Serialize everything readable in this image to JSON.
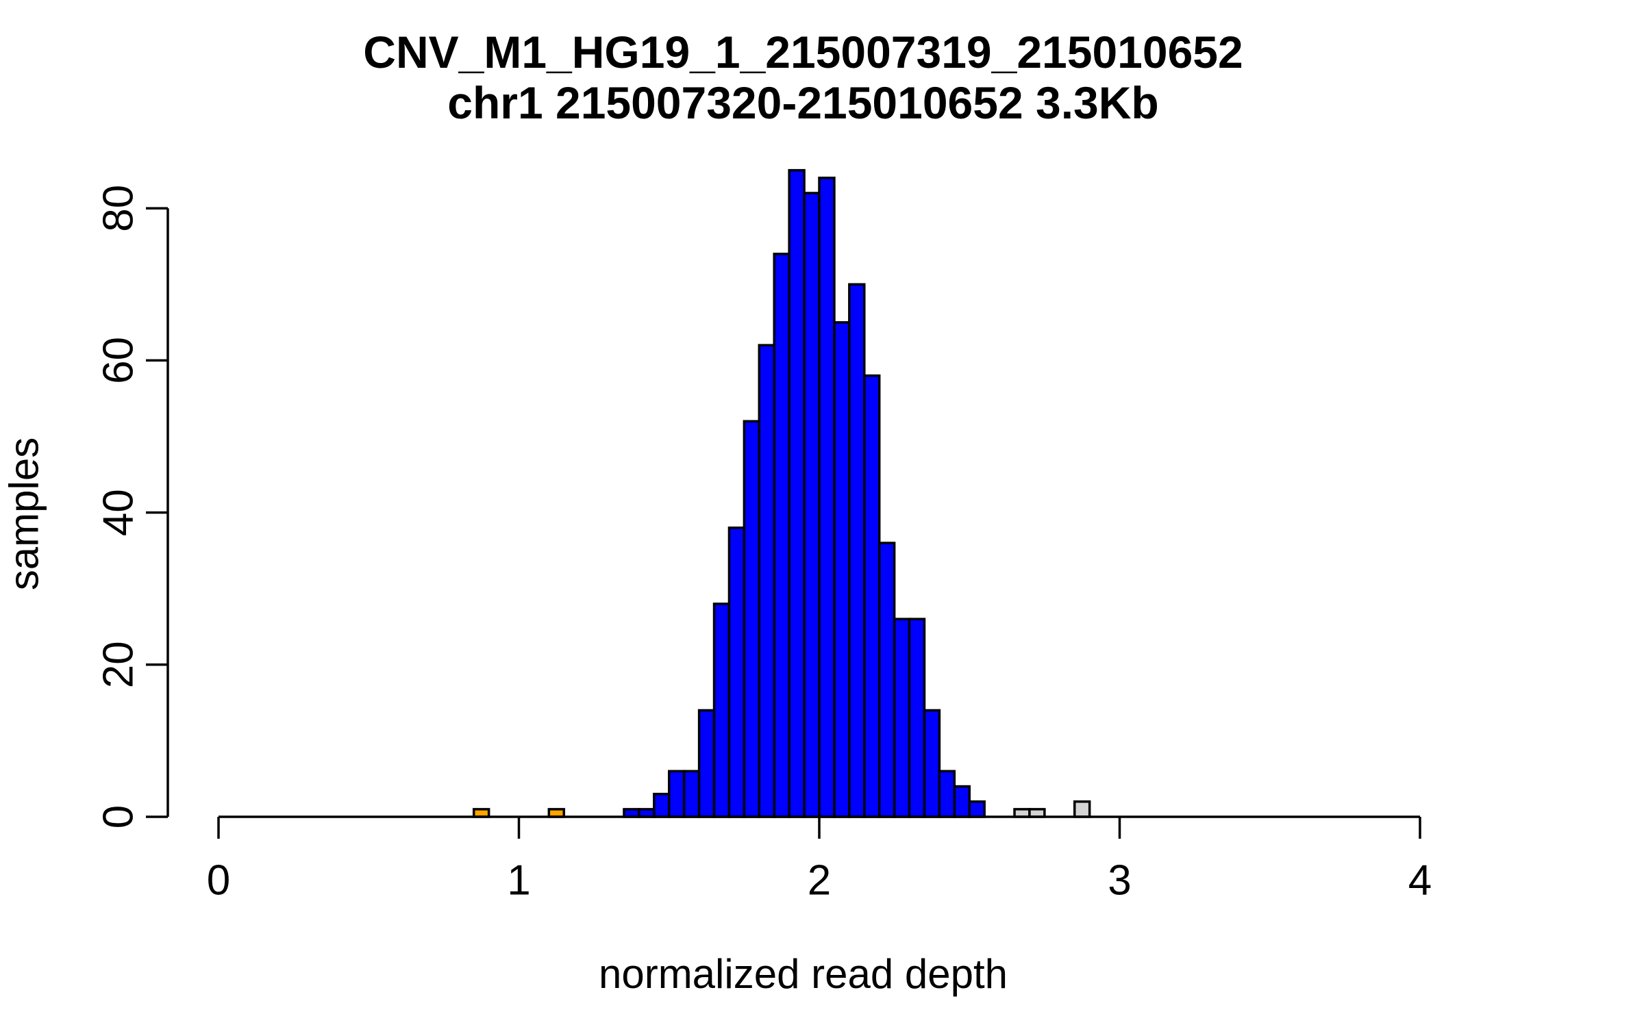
{
  "title": {
    "line1": "CNV_M1_HG19_1_215007319_215010652",
    "line2": "chr1 215007320-215010652 3.3Kb"
  },
  "axes": {
    "x_label": "normalized read depth",
    "y_label": "samples",
    "x_ticks": [
      "0",
      "1",
      "2",
      "3",
      "4"
    ],
    "x_tick_values": [
      0,
      1,
      2,
      3,
      4
    ],
    "y_ticks": [
      "0",
      "20",
      "40",
      "60",
      "80"
    ],
    "y_tick_values": [
      0,
      20,
      40,
      60,
      80
    ]
  },
  "colors": {
    "axis": "#000000",
    "bar_border": "#000000",
    "normal": "#0000ff",
    "loss": "#ffa500",
    "gain": "#d3d3d3",
    "background": "#ffffff"
  },
  "chart_data": {
    "type": "bar",
    "subtype": "histogram",
    "title": "CNV_M1_HG19_1_215007319_215010652",
    "subtitle": "chr1 215007320-215010652 3.3Kb",
    "xlabel": "normalized read depth",
    "ylabel": "samples",
    "xlim": [
      0,
      4.35
    ],
    "ylim": [
      0,
      85
    ],
    "grid": false,
    "legend": false,
    "bin_width": 0.05,
    "bins": [
      {
        "start": 0.85,
        "count": 1,
        "color": "loss"
      },
      {
        "start": 1.1,
        "count": 1,
        "color": "loss"
      },
      {
        "start": 1.35,
        "count": 1,
        "color": "normal"
      },
      {
        "start": 1.4,
        "count": 1,
        "color": "normal"
      },
      {
        "start": 1.45,
        "count": 3,
        "color": "normal"
      },
      {
        "start": 1.5,
        "count": 6,
        "color": "normal"
      },
      {
        "start": 1.55,
        "count": 6,
        "color": "normal"
      },
      {
        "start": 1.6,
        "count": 14,
        "color": "normal"
      },
      {
        "start": 1.65,
        "count": 28,
        "color": "normal"
      },
      {
        "start": 1.7,
        "count": 38,
        "color": "normal"
      },
      {
        "start": 1.75,
        "count": 52,
        "color": "normal"
      },
      {
        "start": 1.8,
        "count": 62,
        "color": "normal"
      },
      {
        "start": 1.85,
        "count": 74,
        "color": "normal"
      },
      {
        "start": 1.9,
        "count": 85,
        "color": "normal"
      },
      {
        "start": 1.95,
        "count": 82,
        "color": "normal"
      },
      {
        "start": 2.0,
        "count": 84,
        "color": "normal"
      },
      {
        "start": 2.05,
        "count": 65,
        "color": "normal"
      },
      {
        "start": 2.1,
        "count": 70,
        "color": "normal"
      },
      {
        "start": 2.15,
        "count": 58,
        "color": "normal"
      },
      {
        "start": 2.2,
        "count": 36,
        "color": "normal"
      },
      {
        "start": 2.25,
        "count": 26,
        "color": "normal"
      },
      {
        "start": 2.3,
        "count": 26,
        "color": "normal"
      },
      {
        "start": 2.35,
        "count": 14,
        "color": "normal"
      },
      {
        "start": 2.4,
        "count": 6,
        "color": "normal"
      },
      {
        "start": 2.45,
        "count": 4,
        "color": "normal"
      },
      {
        "start": 2.5,
        "count": 2,
        "color": "normal"
      },
      {
        "start": 2.65,
        "count": 1,
        "color": "gain"
      },
      {
        "start": 2.7,
        "count": 1,
        "color": "gain"
      },
      {
        "start": 2.85,
        "count": 2,
        "color": "gain"
      }
    ]
  }
}
